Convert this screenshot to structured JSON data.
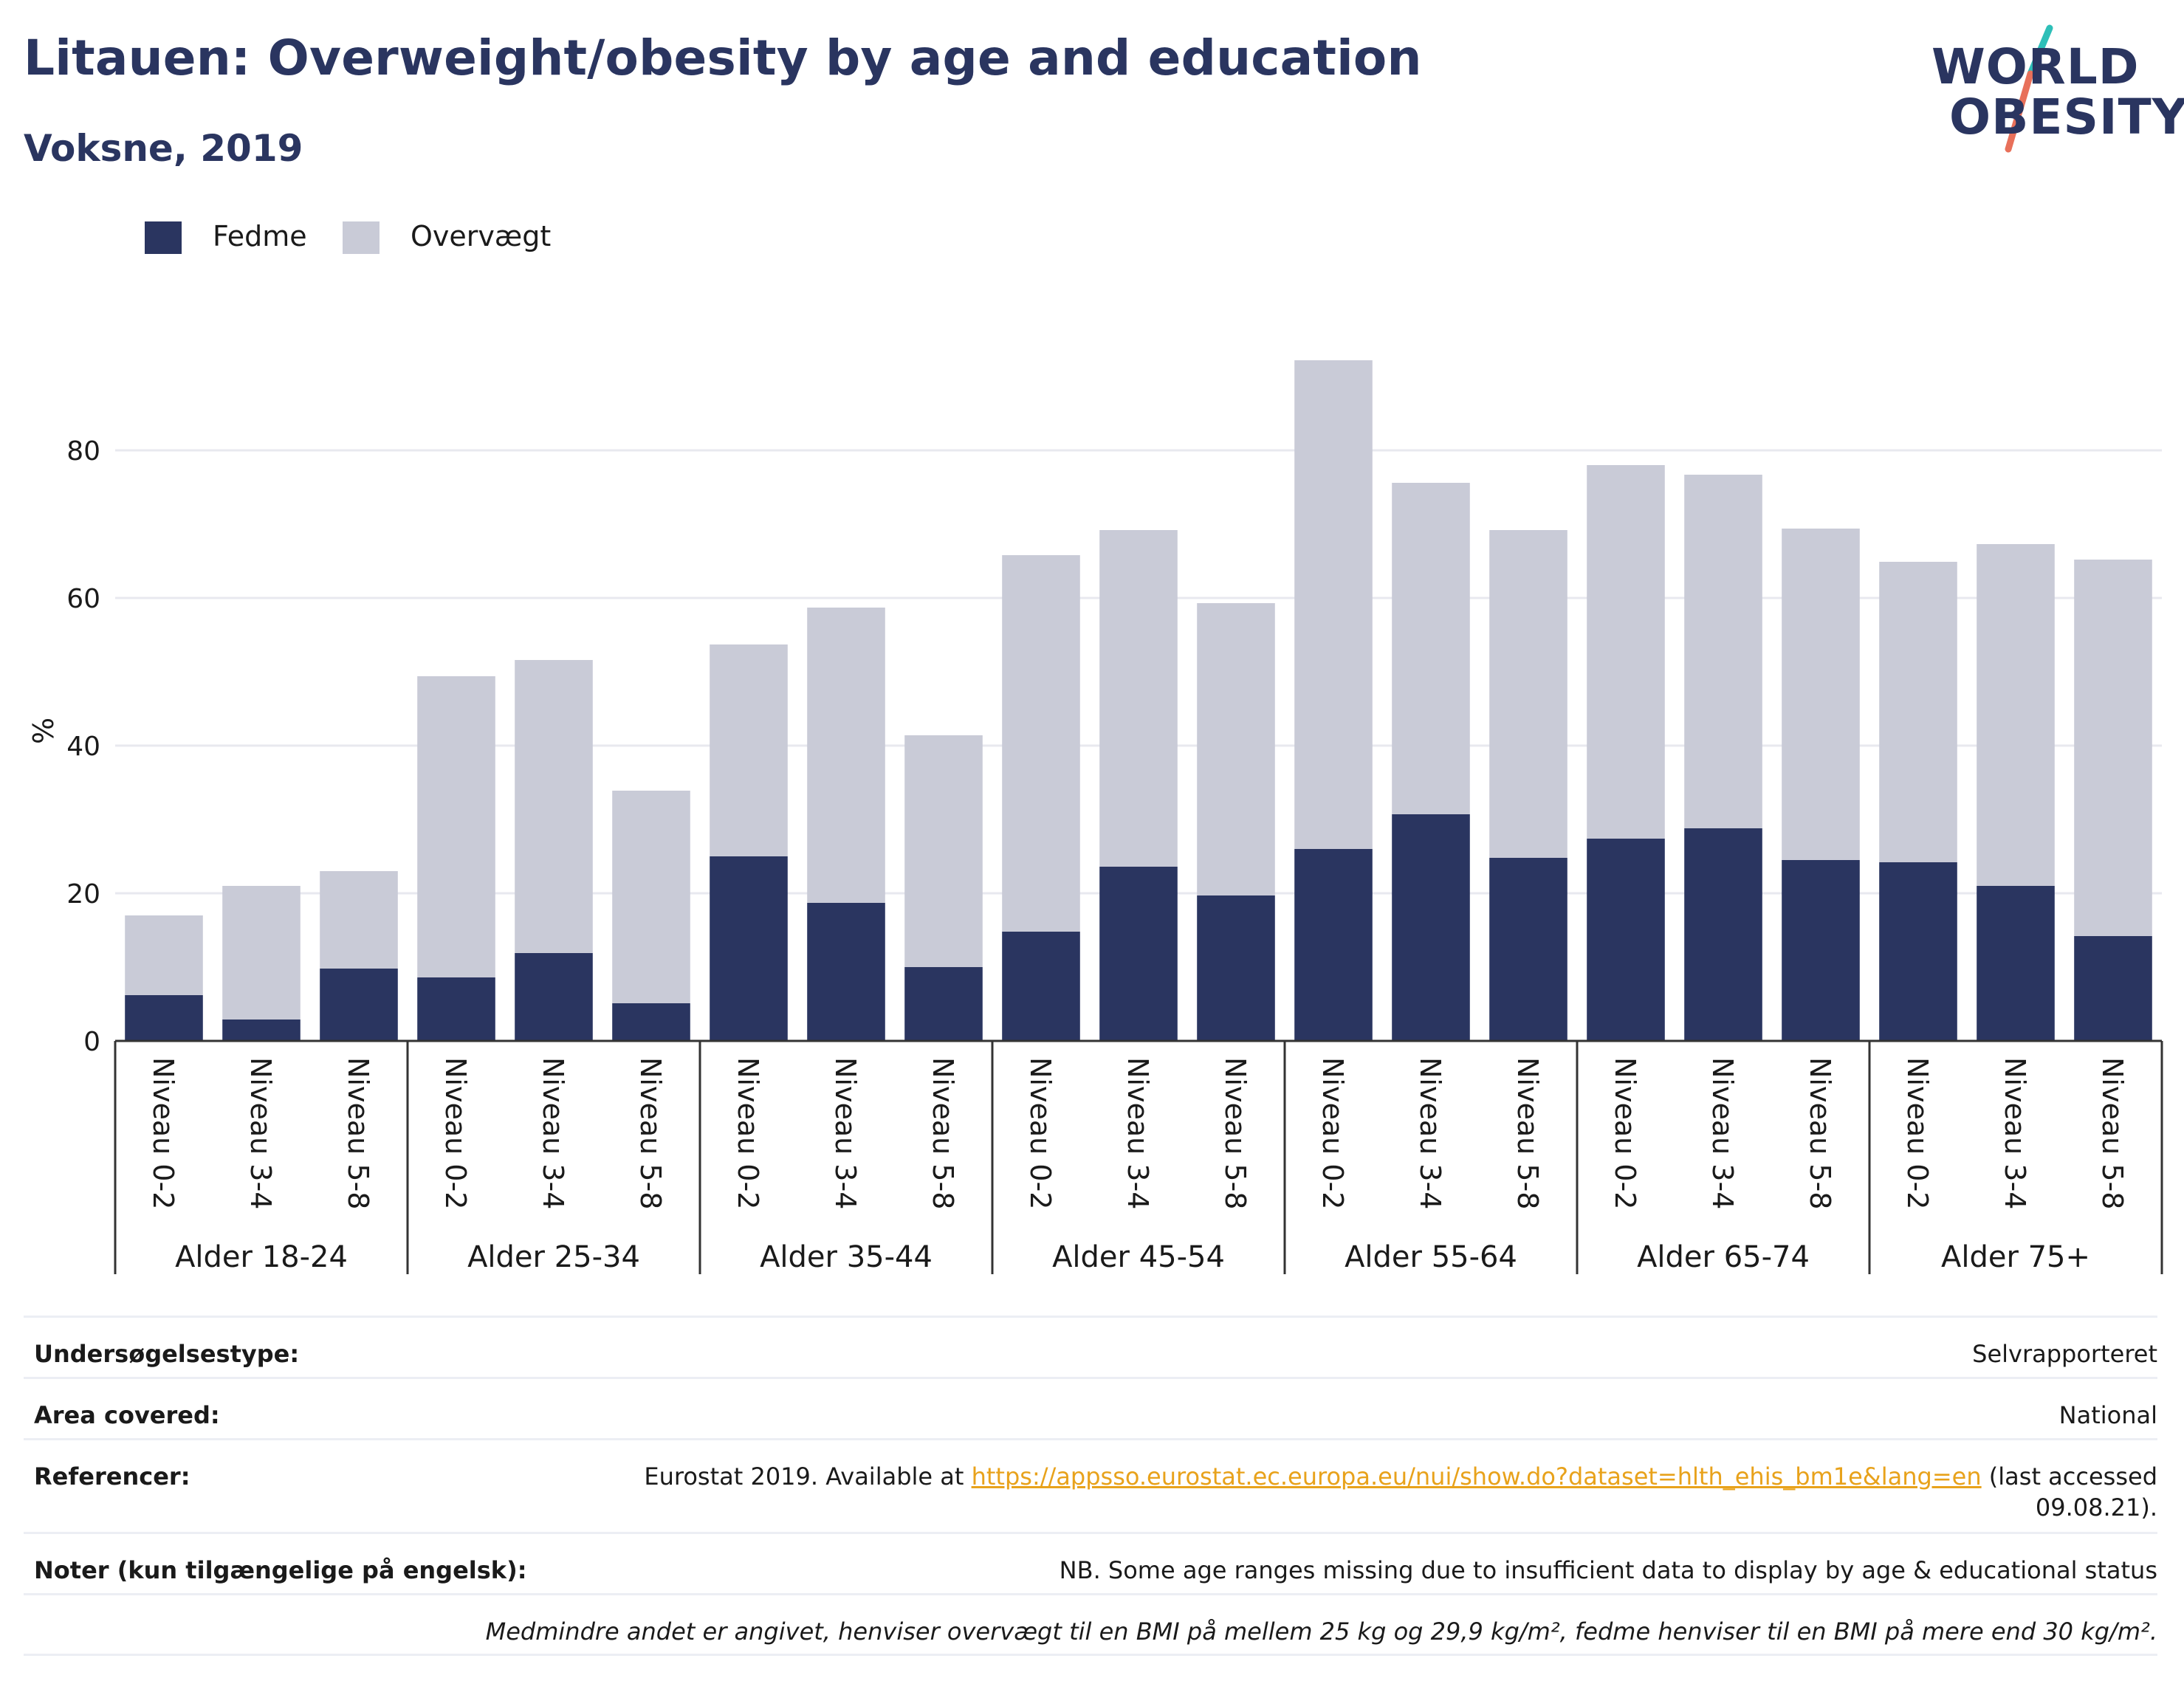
{
  "header": {
    "title": "Litauen: Overweight/obesity by age and education",
    "subtitle": "Voksne, 2019"
  },
  "logo": {
    "line1": "WORLD",
    "line2": "OBESITY",
    "colors": {
      "text": "#2a3560",
      "accent_teal": "#2ebfb8",
      "accent_coral": "#e8705a"
    }
  },
  "colors": {
    "obesity": "#2a3560",
    "overweight": "#c9cbd7",
    "grid": "#e8e9ef",
    "axis": "#333333"
  },
  "chart_data": {
    "type": "bar",
    "stacked": true,
    "ylabel": "%",
    "ylim": [
      0,
      95
    ],
    "yticks": [
      0,
      20,
      40,
      60,
      80
    ],
    "grid": true,
    "legend_position": "top-left",
    "groups": [
      "Alder 18-24",
      "Alder 25-34",
      "Alder 35-44",
      "Alder 45-54",
      "Alder 55-64",
      "Alder 65-74",
      "Alder 75+"
    ],
    "subcategories": [
      "Niveau 0-2",
      "Niveau 3-4",
      "Niveau 5-8"
    ],
    "series": [
      {
        "name": "Fedme",
        "color": "#2a3560",
        "values": [
          6.2,
          2.9,
          9.8,
          8.6,
          11.9,
          5.1,
          25.0,
          18.7,
          10.0,
          14.8,
          23.6,
          19.7,
          26.0,
          30.7,
          24.8,
          27.4,
          28.8,
          24.5,
          24.2,
          21.0,
          14.2
        ]
      },
      {
        "name": "Overvægt",
        "color": "#c9cbd7",
        "values": [
          10.8,
          18.1,
          13.2,
          40.8,
          39.7,
          28.8,
          28.7,
          40.0,
          31.4,
          51.0,
          45.6,
          39.6,
          66.2,
          44.9,
          44.4,
          50.6,
          47.9,
          44.9,
          40.7,
          46.3,
          51.0
        ]
      }
    ]
  },
  "info_rows": [
    {
      "label": "Undersøgelsestype:",
      "value": "Selvrapporteret"
    },
    {
      "label": "Area covered:",
      "value": "National"
    },
    {
      "label": "Referencer:",
      "value_prefix": "Eurostat 2019. Available at ",
      "link": "https://appsso.eurostat.ec.europa.eu/nui/show.do?dataset=hlth_ehis_bm1e&lang=en",
      "value_suffix": " (last accessed",
      "value_line2": "09.08.21)."
    },
    {
      "label": "Noter (kun tilgængelige på engelsk):",
      "value": "NB. Some age ranges missing due to insufficient data to display by age & educational status"
    }
  ],
  "footnote": "Medmindre andet er angivet, henviser overvægt til en BMI på mellem 25 kg og 29,9 kg/m², fedme henviser til en BMI på mere end 30 kg/m²."
}
